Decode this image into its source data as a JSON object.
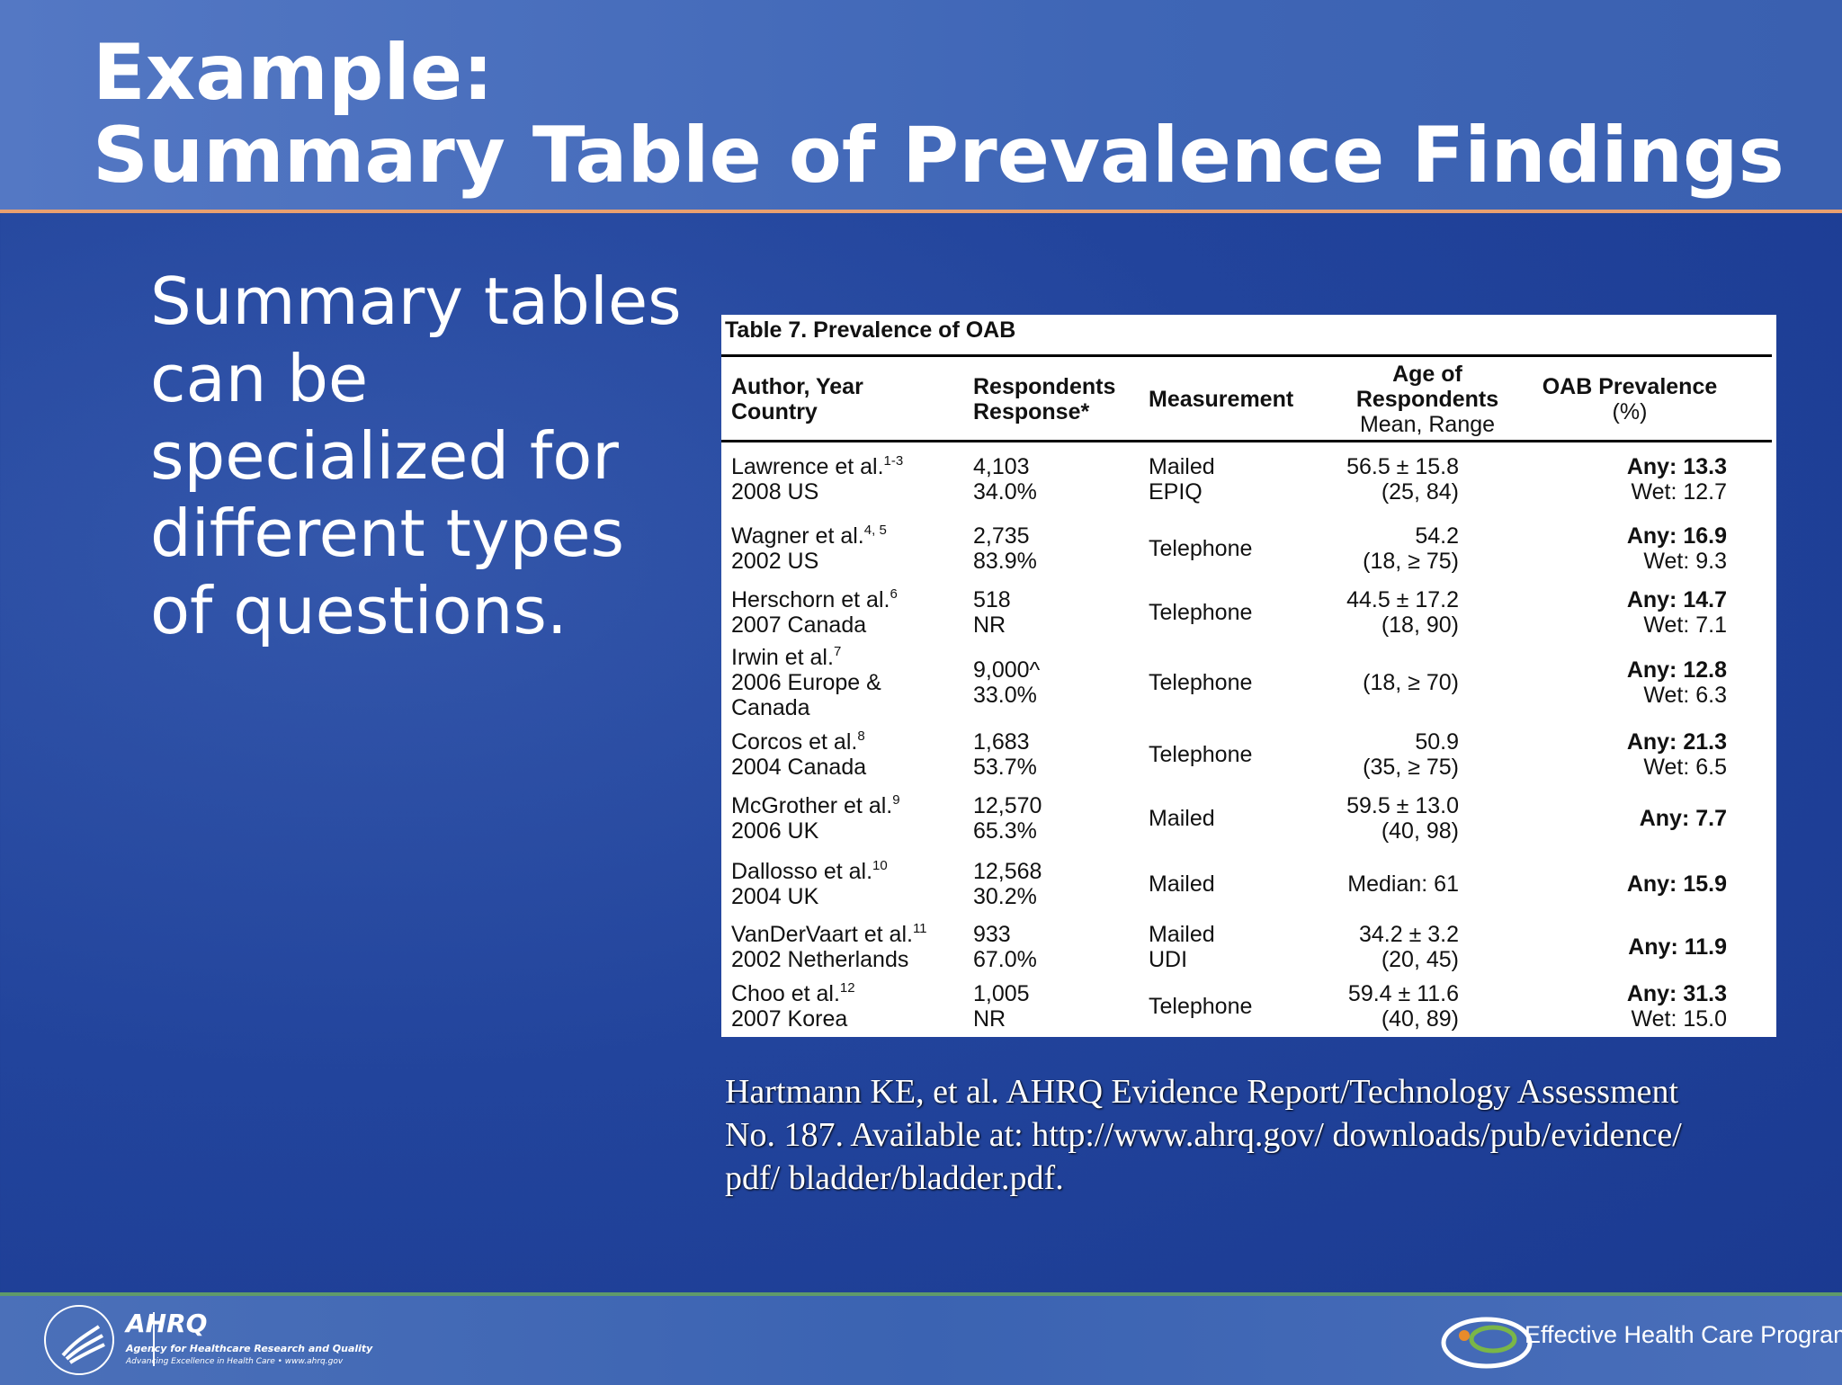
{
  "title": [
    "Example:",
    "Summary Table of Prevalence Findings"
  ],
  "body": [
    "Summary tables",
    "can be",
    "specialized for",
    "different types",
    "of questions."
  ],
  "table": {
    "caption": "Table 7.  Prevalence  of OAB",
    "header": [
      [
        "Author, Year",
        "Country"
      ],
      [
        "Respondents",
        "Response*"
      ],
      [
        "Measurement"
      ],
      [
        "Age of",
        "Respondents",
        "Mean, Range"
      ],
      [
        "OAB Prevalence",
        "(%)"
      ]
    ],
    "rows": [
      {
        "author": [
          "Lawrence  et al.",
          "2008 US"
        ],
        "ref": "1-3",
        "respondents": [
          "4,103",
          "34.0%"
        ],
        "measurement": [
          "Mailed",
          "EPIQ"
        ],
        "age": [
          "56.5 ± 15.8",
          "(25, 84)"
        ],
        "prevalence": [
          "Any: 13.3",
          "Wet: 12.7"
        ]
      },
      {
        "author": [
          "Wagner et al.",
          "2002 US"
        ],
        "ref": "4, 5",
        "respondents": [
          "2,735",
          "83.9%"
        ],
        "measurement": [
          "Telephone"
        ],
        "age": [
          "54.2",
          "(18, ≥ 75)"
        ],
        "prevalence": [
          "Any: 16.9",
          "Wet: 9.3"
        ]
      },
      {
        "author": [
          "Herschorn et al.",
          "2007 Canada"
        ],
        "ref": "6",
        "respondents": [
          "518",
          "NR"
        ],
        "measurement": [
          "Telephone"
        ],
        "age": [
          "44.5 ± 17.2",
          "(18, 90)"
        ],
        "prevalence": [
          "Any: 14.7",
          "Wet: 7.1"
        ]
      },
      {
        "author": [
          "Irwin  et al.",
          "2006 Europe &",
          "Canada"
        ],
        "ref": "7",
        "respondents": [
          "9,000^",
          "33.0%"
        ],
        "measurement": [
          "Telephone"
        ],
        "age": [
          "(18, ≥ 70)"
        ],
        "prevalence": [
          "Any: 12.8",
          "Wet: 6.3"
        ]
      },
      {
        "author": [
          "Corcos et al.",
          "2004 Canada"
        ],
        "ref": "8",
        "respondents": [
          "1,683",
          "53.7%"
        ],
        "measurement": [
          "Telephone"
        ],
        "age": [
          "50.9",
          "(35, ≥ 75)"
        ],
        "prevalence": [
          "Any: 21.3",
          "Wet: 6.5"
        ]
      },
      {
        "author": [
          "McGrother et al.",
          "2006 UK"
        ],
        "ref": "9",
        "respondents": [
          "12,570",
          "65.3%"
        ],
        "measurement": [
          "Mailed"
        ],
        "age": [
          "59.5 ± 13.0",
          "(40, 98)"
        ],
        "prevalence": [
          "Any: 7.7"
        ]
      },
      {
        "author": [
          "Dallosso et al.",
          "2004 UK"
        ],
        "ref": "10",
        "respondents": [
          "12,568",
          "30.2%"
        ],
        "measurement": [
          "Mailed"
        ],
        "age": [
          "Median: 61"
        ],
        "prevalence": [
          "Any: 15.9"
        ]
      },
      {
        "author": [
          "VanDerVaart  et al.",
          "2002 Netherlands"
        ],
        "ref": "11",
        "respondents": [
          "933",
          "67.0%"
        ],
        "measurement": [
          "Mailed",
          "UDI"
        ],
        "age": [
          "34.2 ± 3.2",
          "(20, 45)"
        ],
        "prevalence": [
          "Any: 11.9"
        ]
      },
      {
        "author": [
          "Choo et al.",
          "2007 Korea"
        ],
        "ref": "12",
        "respondents": [
          "1,005",
          "NR"
        ],
        "measurement": [
          "Telephone"
        ],
        "age": [
          "59.4 ± 11.6",
          "(40, 89)"
        ],
        "prevalence": [
          "Any: 31.3",
          "Wet: 15.0"
        ]
      }
    ]
  },
  "citation": [
    "Hartmann KE, et al. AHRQ Evidence Report/Technology Assessment",
    "No. 187. Available at: http://www.ahrq.gov/ downloads/pub/evidence/",
    "pdf/ bladder/bladder.pdf."
  ],
  "footer": {
    "ahrq": "AHRQ",
    "agency": "Agency for Healthcare Research and Quality",
    "tagline": "Advancing Excellence in Health Care • www.ahrq.gov",
    "program": "Effective Health Care Program"
  }
}
